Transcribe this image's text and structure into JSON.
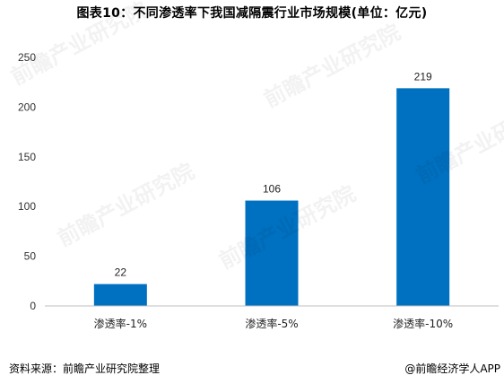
{
  "chart_data": {
    "type": "bar",
    "title": "图表10：不同渗透率下我国减隔震行业市场规模(单位：亿元)",
    "categories": [
      "渗透率-1%",
      "渗透率-5%",
      "渗透率-10%"
    ],
    "values": [
      22,
      106,
      219
    ],
    "data_labels": [
      "22",
      "106",
      "219"
    ],
    "ylim": [
      0,
      250
    ],
    "yticks": [
      0,
      50,
      100,
      150,
      200,
      250
    ],
    "grid": false,
    "legend": "none",
    "bar_color": "#0070C0"
  },
  "footer": {
    "source": "资料来源：前瞻产业研究院整理",
    "credit_symbol": "@",
    "credit": "前瞻经济学人APP"
  },
  "watermark": {
    "text": "前瞻产业研究院"
  }
}
